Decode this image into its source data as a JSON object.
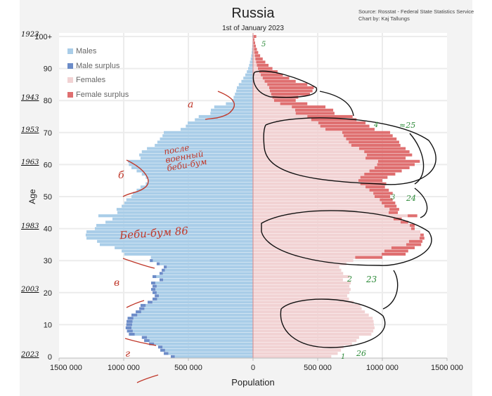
{
  "title": "Russia",
  "subtitle": "1st of January 2023",
  "source_lines": [
    "Source: Rosstat - Federal State Statistics Service",
    "Chart by: Kaj Tallungs"
  ],
  "legend": [
    {
      "label": "Males",
      "color": "#a9cde8"
    },
    {
      "label": "Male surplus",
      "color": "#6c8cc8"
    },
    {
      "label": "Females",
      "color": "#f1d2d3"
    },
    {
      "label": "Female surplus",
      "color": "#df6f70"
    }
  ],
  "chart_data": {
    "type": "bar",
    "subtype": "population-pyramid",
    "title": "Russia",
    "subtitle": "1st of January 2023",
    "xlabel": "Population",
    "ylabel": "Age",
    "xlim": [
      -1500000,
      1500000
    ],
    "x_tick_labels": [
      "1500 000",
      "1000 000",
      "500 000",
      "0",
      "500 000",
      "1000 000",
      "1500 000"
    ],
    "y_tick_labels": [
      "0",
      "10",
      "20",
      "30",
      "40",
      "50",
      "60",
      "70",
      "80",
      "90",
      "100+"
    ],
    "grid": true,
    "legend_position": "top-left",
    "ages": "0-100+",
    "series": [
      {
        "name": "Males",
        "values": [
          636000,
          690000,
          717000,
          734000,
          804000,
          842000,
          860000,
          960000,
          975000,
          985000,
          980000,
          978000,
          970000,
          940000,
          907000,
          880000,
          870000,
          815000,
          777000,
          760000,
          777000,
          788000,
          777000,
          788000,
          723000,
          777000,
          723000,
          706000,
          690000,
          745000,
          798000,
          790000,
          995000,
          1016000,
          1070000,
          1185000,
          1206000,
          1288000,
          1294000,
          1288000,
          1223000,
          1212000,
          1141000,
          1087000,
          1196000,
          1049000,
          1055000,
          1016000,
          995000,
          980000,
          940000,
          930000,
          900000,
          870000,
          830000,
          815000,
          830000,
          860000,
          900000,
          940000,
          960000,
          967000,
          870000,
          880000,
          860000,
          820000,
          760000,
          740000,
          720000,
          700000,
          690000,
          560000,
          520000,
          505000,
          450000,
          420000,
          330000,
          326000,
          300000,
          210000,
          163000,
          150000,
          140000,
          130000,
          125000,
          110000,
          90000,
          75000,
          60000,
          48000,
          38000,
          30000,
          24000,
          18000,
          14000,
          10000,
          8000,
          6000,
          4000,
          3000,
          5000
        ]
      },
      {
        "name": "Females",
        "values": [
          605000,
          655000,
          680000,
          700000,
          765000,
          800000,
          820000,
          915000,
          930000,
          940000,
          935000,
          932000,
          925000,
          895000,
          865000,
          840000,
          830000,
          778000,
          742000,
          728000,
          745000,
          755000,
          745000,
          756000,
          695000,
          748000,
          697000,
          682000,
          667000,
          722000,
          775000,
          1000000,
          1180000,
          1200000,
          1250000,
          1300000,
          1310000,
          1325000,
          1320000,
          1290000,
          1250000,
          1250000,
          1200000,
          1150000,
          1270000,
          1120000,
          1130000,
          1110000,
          1100000,
          1080000,
          1060000,
          1080000,
          1050000,
          1020000,
          1030000,
          1000000,
          1040000,
          1100000,
          1150000,
          1210000,
          1250000,
          1290000,
          1180000,
          1230000,
          1210000,
          1180000,
          1140000,
          1130000,
          1110000,
          1080000,
          1060000,
          940000,
          900000,
          870000,
          800000,
          770000,
          630000,
          620000,
          560000,
          420000,
          330000,
          350000,
          440000,
          460000,
          470000,
          420000,
          330000,
          280000,
          230000,
          190000,
          150000,
          120000,
          95000,
          75000,
          55000,
          40000,
          30000,
          22000,
          16000,
          11000,
          25000
        ]
      }
    ]
  },
  "annotations": {
    "birth_years": [
      "1923",
      "1943",
      "1953",
      "1963",
      "1983",
      "2003",
      "2023"
    ],
    "letters": [
      "а",
      "б",
      "в",
      "г"
    ],
    "post_war_note": [
      "после",
      "военный",
      "беби-бум"
    ],
    "boom_note": "Беби-бум 86",
    "green_marks": [
      "5",
      "4",
      "≈25",
      "3",
      "24",
      "2",
      "23",
      "1",
      "26"
    ]
  }
}
